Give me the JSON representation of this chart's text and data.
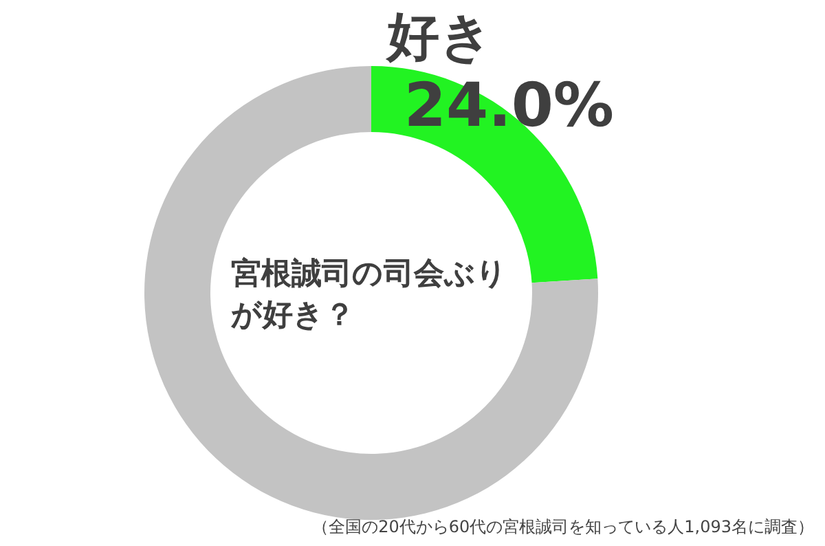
{
  "chart_data": {
    "type": "donut",
    "title": "宮根誠司の司会ぶりが好き？",
    "categories": [
      "好き",
      null
    ],
    "values": [
      24.0,
      76.0
    ],
    "colors": [
      "#22f322",
      "#c3c3c3"
    ],
    "value_labels": [
      "24.0%",
      null
    ],
    "annotations": [
      "（全国の20代から60代の宮根誠司を知っている人1,093名に調査）"
    ]
  }
}
